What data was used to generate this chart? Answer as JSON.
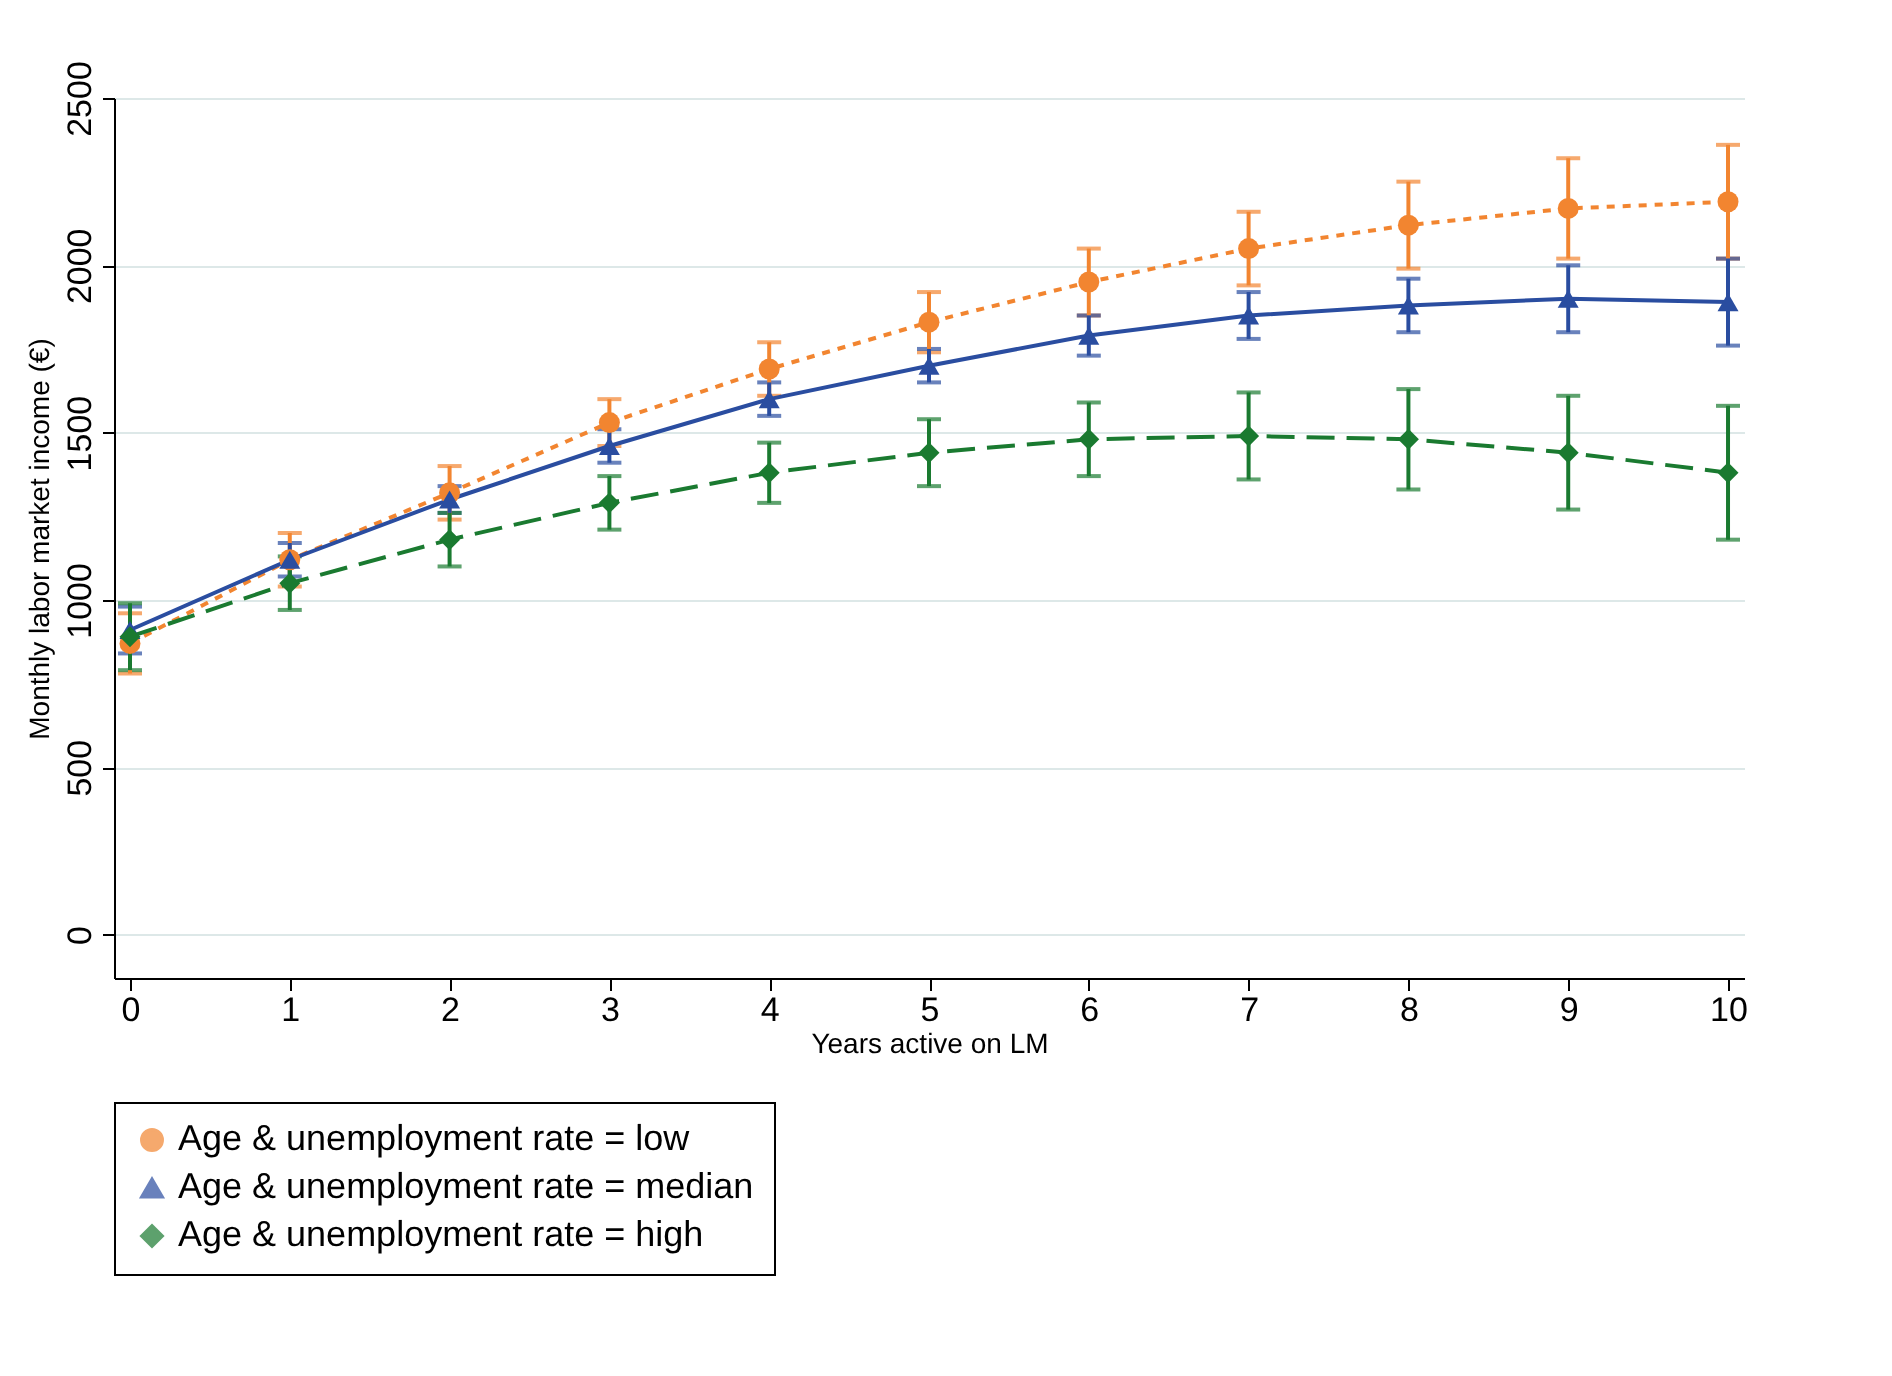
{
  "chart_data": {
    "type": "line",
    "xlabel": "Years active on LM",
    "ylabel": "Monthly labor market income (€)",
    "x": [
      0,
      1,
      2,
      3,
      4,
      5,
      6,
      7,
      8,
      9,
      10
    ],
    "xlim": [
      -0.1,
      10.1
    ],
    "xticks": [
      0,
      1,
      2,
      3,
      4,
      5,
      6,
      7,
      8,
      9,
      10
    ],
    "ylim": [
      -130,
      2500
    ],
    "yticks": [
      0,
      500,
      1000,
      1500,
      2000,
      2500
    ],
    "grid": "y",
    "legend": "bottom",
    "series": [
      {
        "name": "Age & unemployment rate = low",
        "color": "#f28530",
        "marker": "circle",
        "line_style": "dotted",
        "values": [
          870,
          1120,
          1320,
          1530,
          1690,
          1830,
          1950,
          2050,
          2120,
          2170,
          2190
        ],
        "errors": [
          90,
          80,
          80,
          70,
          80,
          90,
          100,
          110,
          130,
          150,
          170
        ]
      },
      {
        "name": "Age & unemployment rate = median",
        "color": "#2a4da0",
        "marker": "triangle",
        "line_style": "solid",
        "values": [
          910,
          1120,
          1300,
          1460,
          1600,
          1700,
          1790,
          1850,
          1880,
          1900,
          1890
        ],
        "errors": [
          70,
          50,
          40,
          50,
          50,
          50,
          60,
          70,
          80,
          100,
          130
        ]
      },
      {
        "name": "Age & unemployment rate = high",
        "color": "#1a7a30",
        "marker": "diamond",
        "line_style": "dashed",
        "values": [
          890,
          1050,
          1180,
          1290,
          1380,
          1440,
          1480,
          1490,
          1480,
          1440,
          1380
        ],
        "errors": [
          100,
          80,
          80,
          80,
          90,
          100,
          110,
          130,
          150,
          170,
          200
        ]
      }
    ]
  }
}
